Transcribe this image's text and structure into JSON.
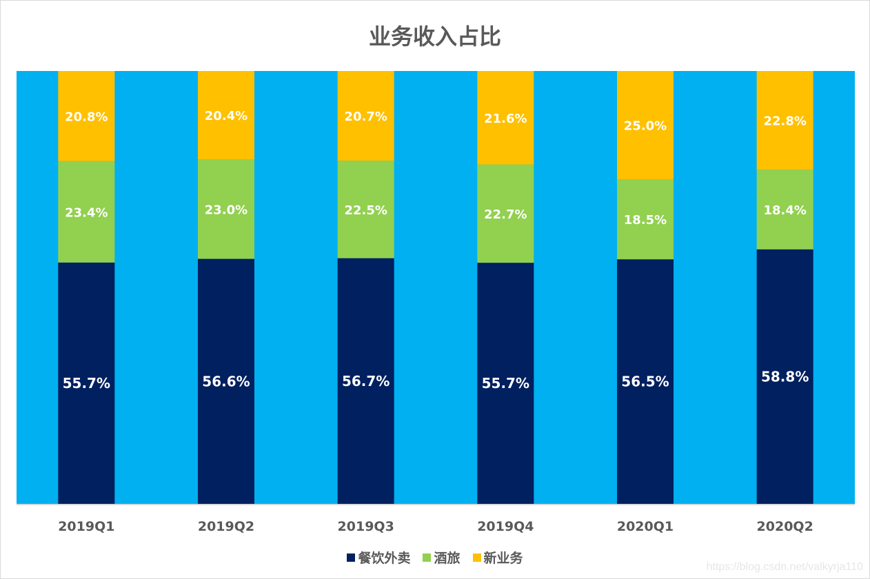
{
  "chart_data": {
    "type": "bar",
    "stacked": true,
    "title": "业务收入占比",
    "categories": [
      "2019Q1",
      "2019Q2",
      "2019Q3",
      "2019Q4",
      "2020Q1",
      "2020Q2"
    ],
    "series": [
      {
        "name": "餐饮外卖",
        "color": "#002060",
        "values": [
          55.7,
          56.6,
          56.7,
          55.7,
          56.5,
          58.8
        ],
        "labels": [
          "55.7%",
          "56.6%",
          "56.7%",
          "55.7%",
          "56.5%",
          "58.8%"
        ]
      },
      {
        "name": "酒旅",
        "color": "#92D050",
        "values": [
          23.4,
          23.0,
          22.5,
          22.7,
          18.5,
          18.4
        ],
        "labels": [
          "23.4%",
          "23.0%",
          "22.5%",
          "22.7%",
          "18.5%",
          "18.4%"
        ]
      },
      {
        "name": "新业务",
        "color": "#FFC000",
        "values": [
          20.8,
          20.4,
          20.7,
          21.6,
          25.0,
          22.8
        ],
        "labels": [
          "20.8%",
          "20.4%",
          "20.7%",
          "21.6%",
          "25.0%",
          "22.8%"
        ]
      }
    ],
    "plot_background": "#00B0F0",
    "ylim": [
      0,
      100
    ],
    "grid": false,
    "legend_position": "bottom"
  },
  "watermark": "https://blog.csdn.net/valkyrja110"
}
